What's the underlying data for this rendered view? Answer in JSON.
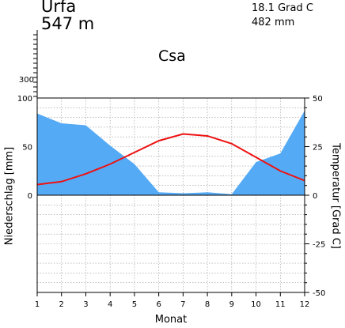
{
  "header": {
    "station": "Urfa",
    "elevation": "547  m",
    "annual_temperature": "18.1 Grad C",
    "annual_precipitation": "482 mm",
    "climate_class": "Csa"
  },
  "chart_data": {
    "type": "area",
    "xlabel": "Monat",
    "ylabel_left": "Niederschlag [mm]",
    "ylabel_right": "Temperatur [Grad C]",
    "x": [
      1,
      2,
      3,
      4,
      5,
      6,
      7,
      8,
      9,
      10,
      11,
      12
    ],
    "x_tick_labels": [
      "1",
      "2",
      "3",
      "4",
      "5",
      "6",
      "7",
      "8",
      "9",
      "10",
      "11",
      "12"
    ],
    "precip_tick_labels": [
      "0",
      "50",
      "100",
      "300"
    ],
    "temp_tick_labels": [
      "50",
      "25",
      "0",
      "-25",
      "-50"
    ],
    "precipitation": {
      "unit": "mm",
      "color": "#55aaf5",
      "values": [
        84,
        74,
        72,
        51,
        32,
        3,
        2,
        3,
        1,
        34,
        43,
        87
      ]
    },
    "temperature": {
      "unit": "Grad C",
      "color": "#ee1111",
      "values": [
        5.5,
        7,
        11,
        16,
        22,
        28,
        31.5,
        30.5,
        26.5,
        19.5,
        12.5,
        7.5
      ]
    },
    "precip_ylim": [
      0,
      100
    ],
    "temp_ylim": [
      -50,
      50
    ],
    "grid": true
  }
}
